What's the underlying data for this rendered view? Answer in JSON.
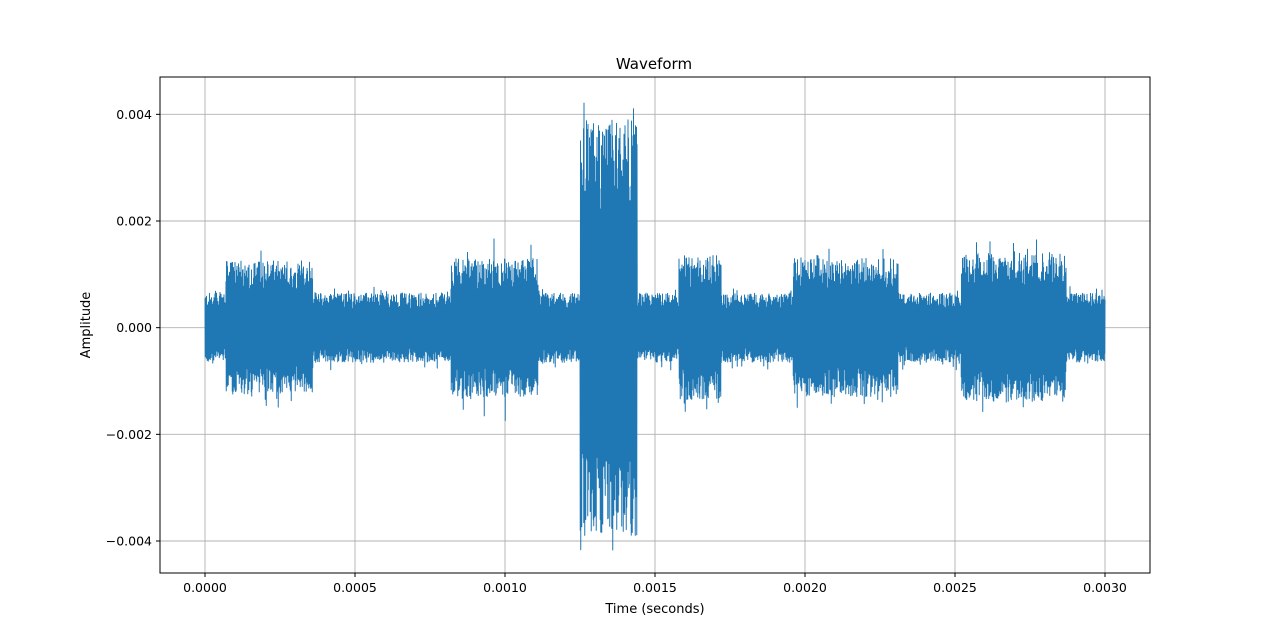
{
  "chart_data": {
    "type": "line",
    "title": "Waveform",
    "xlabel": "Time (seconds)",
    "ylabel": "Amplitude",
    "xlim": [
      -0.00015,
      0.00315
    ],
    "ylim": [
      -0.0046,
      0.0047
    ],
    "grid": true,
    "color": "#1f77b4",
    "x_ticks": [
      0.0,
      0.0005,
      0.001,
      0.0015,
      0.002,
      0.0025,
      0.003
    ],
    "x_tick_labels": [
      "0.0000",
      "0.0005",
      "0.0010",
      "0.0015",
      "0.0020",
      "0.0025",
      "0.0030"
    ],
    "y_ticks": [
      0.004,
      0.002,
      0.0,
      -0.002,
      -0.004
    ],
    "y_tick_labels": [
      "0.004",
      "0.002",
      "0.000",
      "−0.002",
      "−0.004"
    ],
    "series": [
      {
        "segments": [
          {
            "x_start": 0.0,
            "x_end": 7e-05,
            "amplitude": 0.00065,
            "peak": 0.0007
          },
          {
            "x_start": 7e-05,
            "x_end": 0.00036,
            "amplitude": 0.00125,
            "peak": 0.0015
          },
          {
            "x_start": 0.00036,
            "x_end": 0.00082,
            "amplitude": 0.00065,
            "peak": 0.0008
          },
          {
            "x_start": 0.00082,
            "x_end": 0.00111,
            "amplitude": 0.0013,
            "peak": 0.0018
          },
          {
            "x_start": 0.00111,
            "x_end": 0.00125,
            "amplitude": 0.00065,
            "peak": 0.0008
          },
          {
            "x_start": 0.00125,
            "x_end": 0.00144,
            "amplitude": 0.0039,
            "peak": 0.0043
          },
          {
            "x_start": 0.00144,
            "x_end": 0.00158,
            "amplitude": 0.00065,
            "peak": 0.0008
          },
          {
            "x_start": 0.00158,
            "x_end": 0.00172,
            "amplitude": 0.00135,
            "peak": 0.0016
          },
          {
            "x_start": 0.00172,
            "x_end": 0.00196,
            "amplitude": 0.00065,
            "peak": 0.0008
          },
          {
            "x_start": 0.00196,
            "x_end": 0.00231,
            "amplitude": 0.0013,
            "peak": 0.0015
          },
          {
            "x_start": 0.00231,
            "x_end": 0.00252,
            "amplitude": 0.00065,
            "peak": 0.0008
          },
          {
            "x_start": 0.00252,
            "x_end": 0.00287,
            "amplitude": 0.0014,
            "peak": 0.0017
          },
          {
            "x_start": 0.00287,
            "x_end": 0.003,
            "amplitude": 0.00065,
            "peak": 0.0008
          }
        ]
      }
    ]
  }
}
